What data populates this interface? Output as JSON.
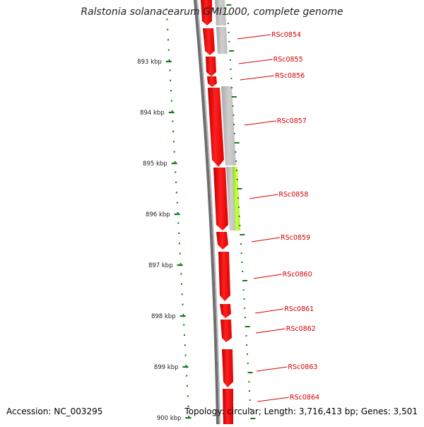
{
  "title": "Ralstonia solanacearum GMI1000, complete genome",
  "footer": {
    "accession": "Accession: NC_003295",
    "topology": "Topology: circular; Length: 3,716,413 bp; Genes: 3,501"
  },
  "colors": {
    "gene_fill": "#ff1a1a",
    "gene_edge": "#cc0000",
    "grey_feature": "#c2c2c2",
    "highlight_feature": "#b8ff30",
    "tick": "#1a7a1a",
    "label": "#d40000",
    "backbone": "#7a7a7a"
  },
  "scale_ticks": [
    {
      "label": "893 kbp"
    },
    {
      "label": "894 kbp"
    },
    {
      "label": "895 kbp"
    },
    {
      "label": "896 kbp"
    },
    {
      "label": "897 kbp"
    },
    {
      "label": "898 kbp"
    },
    {
      "label": "899 kbp"
    },
    {
      "label": "900 kbp"
    }
  ],
  "gene_labels": [
    "RSc0854",
    "RSc0855",
    "RSc0856",
    "RSc0857",
    "RSc0858",
    "RSc0859",
    "RSc0860",
    "RSc0861",
    "RSc0862",
    "RSc0863",
    "RSc0864"
  ]
}
